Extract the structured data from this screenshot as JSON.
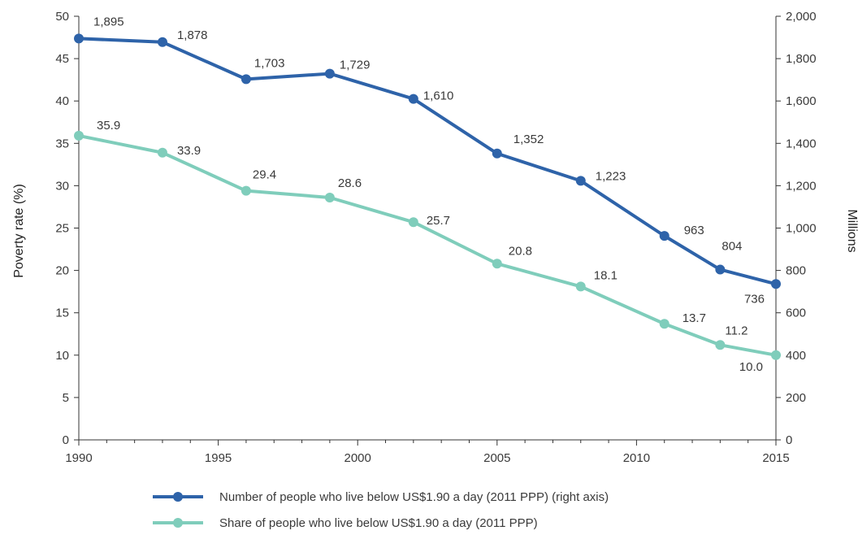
{
  "chart_data": {
    "type": "line",
    "title": "",
    "xlabel": "",
    "ylabel": "Poverty rate (%)",
    "y2label": "Millions",
    "x": [
      1990,
      1993,
      1996,
      1999,
      2002,
      2005,
      2008,
      2011,
      2013,
      2015
    ],
    "xticks": [
      1990,
      1995,
      2000,
      2005,
      2010,
      2015
    ],
    "xlim": [
      1990,
      2015
    ],
    "ylim": [
      0,
      50
    ],
    "yticks": [
      0,
      5,
      10,
      15,
      20,
      25,
      30,
      35,
      40,
      45,
      50
    ],
    "y2lim": [
      0,
      2000
    ],
    "y2ticks": [
      0,
      200,
      400,
      600,
      800,
      1000,
      1200,
      1400,
      1600,
      1800,
      2000
    ],
    "y2tick_labels": [
      "0",
      "200",
      "400",
      "600",
      "800",
      "1,000",
      "1,200",
      "1,400",
      "1,600",
      "1,800",
      "2,000"
    ],
    "grid": false,
    "legend_position": "bottom",
    "series": [
      {
        "name": "Number of people who live below US$1.90 a day (2011 PPP) (right axis)",
        "axis": "right",
        "color": "#2e63a9",
        "values": [
          1895,
          1878,
          1703,
          1729,
          1610,
          1352,
          1223,
          963,
          804,
          736
        ],
        "labels": [
          "1,895",
          "1,878",
          "1,703",
          "1,729",
          "1,610",
          "1,352",
          "1,223",
          "963",
          "804",
          "736"
        ]
      },
      {
        "name": "Share of people who live below US$1.90 a day (2011 PPP)",
        "axis": "left",
        "color": "#7fcdbb",
        "values": [
          35.9,
          33.9,
          29.4,
          28.6,
          25.7,
          20.8,
          18.1,
          13.7,
          11.2,
          10.0
        ],
        "labels": [
          "35.9",
          "33.9",
          "29.4",
          "28.6",
          "25.7",
          "20.8",
          "18.1",
          "13.7",
          "11.2",
          "10.0"
        ]
      }
    ]
  }
}
